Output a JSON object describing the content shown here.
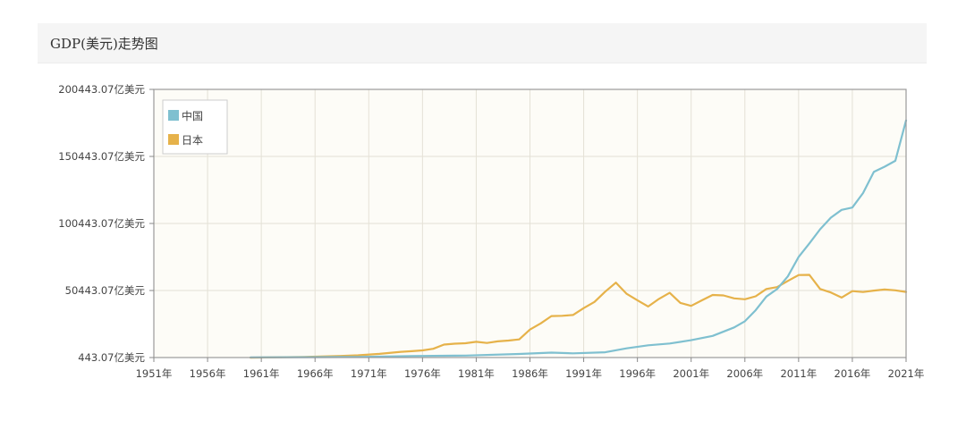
{
  "panel": {
    "title": "GDP(美元)走势图"
  },
  "colors": {
    "china": "#7fc0d0",
    "japan": "#e6b24a",
    "plot_bg": "#fdfcf7",
    "grid": "#e4e1d6"
  },
  "chart_data": {
    "type": "line",
    "title": "GDP(美元)走势图",
    "xlabel": "",
    "ylabel": "",
    "xlim": [
      1951,
      2021
    ],
    "ylim": [
      443.07,
      200443.07
    ],
    "x_ticks": [
      1951,
      1956,
      1961,
      1966,
      1971,
      1976,
      1981,
      1986,
      1991,
      1996,
      2001,
      2006,
      2011,
      2016,
      2021
    ],
    "x_tick_labels": [
      "1951年",
      "1956年",
      "1961年",
      "1966年",
      "1971年",
      "1976年",
      "1981年",
      "1986年",
      "1991年",
      "1996年",
      "2001年",
      "2006年",
      "2011年",
      "2016年",
      "2021年"
    ],
    "y_ticks": [
      443.07,
      50443.07,
      100443.07,
      150443.07,
      200443.07
    ],
    "y_tick_labels": [
      "443.07亿美元",
      "50443.07亿美元",
      "100443.07亿美元",
      "150443.07亿美元",
      "200443.07亿美元"
    ],
    "legend_position": "top-left",
    "grid": true,
    "series": [
      {
        "name": "中国",
        "color": "#7fc0d0",
        "x": [
          1960,
          1965,
          1970,
          1975,
          1980,
          1985,
          1988,
          1990,
          1993,
          1995,
          1997,
          1999,
          2001,
          2003,
          2005,
          2006,
          2007,
          2008,
          2009,
          2010,
          2011,
          2012,
          2013,
          2014,
          2015,
          2016,
          2017,
          2018,
          2019,
          2020,
          2021
        ],
        "values": [
          600,
          700,
          900,
          1600,
          1900,
          3100,
          4100,
          3600,
          4400,
          7300,
          9600,
          10900,
          13400,
          16600,
          22900,
          27500,
          35700,
          45900,
          51500,
          61000,
          75500,
          85600,
          96100,
          104800,
          110600,
          112300,
          123100,
          138900,
          142800,
          147200,
          177300
        ]
      },
      {
        "name": "日本",
        "color": "#e6b24a",
        "x": [
          1960,
          1965,
          1968,
          1970,
          1972,
          1974,
          1975,
          1976,
          1977,
          1978,
          1979,
          1980,
          1981,
          1982,
          1983,
          1984,
          1985,
          1986,
          1987,
          1988,
          1989,
          1990,
          1991,
          1992,
          1993,
          1994,
          1995,
          1996,
          1997,
          1998,
          1999,
          2000,
          2001,
          2002,
          2003,
          2004,
          2005,
          2006,
          2007,
          2008,
          2009,
          2010,
          2011,
          2012,
          2013,
          2014,
          2015,
          2016,
          2017,
          2018,
          2019,
          2020,
          2021
        ],
        "values": [
          400,
          900,
          1500,
          2100,
          3200,
          4700,
          5200,
          5800,
          7000,
          10100,
          10800,
          11100,
          12200,
          11300,
          12500,
          13100,
          14000,
          21300,
          25900,
          31400,
          31600,
          32200,
          37300,
          41900,
          49600,
          56300,
          48000,
          43200,
          38500,
          44200,
          48700,
          41200,
          39000,
          43100,
          47100,
          46800,
          44600,
          43900,
          46100,
          51600,
          53000,
          57600,
          62000,
          62100,
          51600,
          49000,
          45200,
          50000,
          49300,
          50400,
          51200,
          50600,
          49400
        ]
      }
    ]
  }
}
